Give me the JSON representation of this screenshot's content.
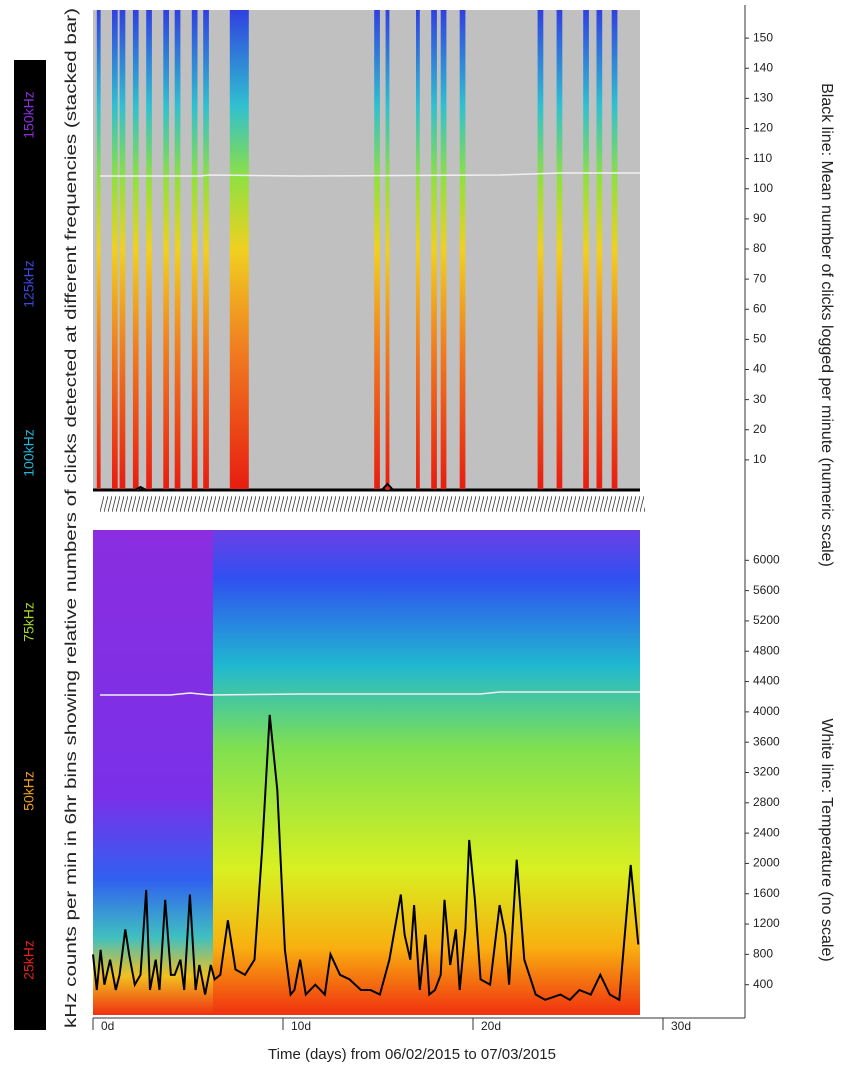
{
  "frequency_legend": {
    "title": "kHz counts per min in 6hr bins showing relative numbers of clicks detected at different frequencies (stacked bar)",
    "items": [
      {
        "label": "25kHz",
        "color": "#e8201c"
      },
      {
        "label": "50kHz",
        "color": "#f0a020"
      },
      {
        "label": "75kHz",
        "color": "#a8d820"
      },
      {
        "label": "100kHz",
        "color": "#20b8d8"
      },
      {
        "label": "125kHz",
        "color": "#3a4ae0"
      },
      {
        "label": "150kHz",
        "color": "#8a30e0"
      }
    ]
  },
  "chart_data": [
    {
      "type": "bar",
      "ylabel": "Black line: Mean number of clicks logged per minute (numeric scale)",
      "xlim": [
        0,
        34
      ],
      "ylim": [
        0,
        160
      ],
      "yticks": [
        10,
        20,
        30,
        40,
        50,
        60,
        70,
        80,
        90,
        100,
        110,
        120,
        130,
        140,
        150
      ],
      "bars": {
        "x_start": [
          0.2,
          1.0,
          1.4,
          2.1,
          2.8,
          3.7,
          4.3,
          5.2,
          5.8,
          7.2,
          14.8,
          15.4,
          17.0,
          17.8,
          18.3,
          19.3,
          23.4,
          24.4,
          25.8,
          26.5,
          27.3
        ],
        "x_end": [
          0.4,
          1.3,
          1.7,
          2.4,
          3.1,
          4.0,
          4.6,
          5.5,
          6.1,
          8.2,
          15.1,
          15.6,
          17.2,
          18.1,
          18.6,
          19.6,
          23.7,
          24.7,
          26.1,
          26.8,
          27.6
        ]
      },
      "line": {
        "color": "#000000",
        "x": [
          0,
          2.2,
          2.5,
          2.8,
          15.2,
          15.5,
          15.8,
          28.7
        ],
        "values": [
          0,
          0,
          1,
          0,
          0,
          2,
          0,
          0
        ]
      }
    },
    {
      "type": "line",
      "ylabel": "White line: Temperature (no scale)",
      "xlabel": "Time (days) from 06/02/2015 to 07/03/2015",
      "xlim": [
        0,
        34
      ],
      "xticks": [
        {
          "value": 0,
          "label": "0d"
        },
        {
          "value": 10,
          "label": "10d"
        },
        {
          "value": 20,
          "label": "20d"
        },
        {
          "value": 30,
          "label": "30d"
        }
      ],
      "ylim": [
        0,
        6400
      ],
      "yticks": [
        400,
        800,
        1200,
        1600,
        2000,
        2400,
        2800,
        3200,
        3600,
        4000,
        4400,
        4800,
        5200,
        5600,
        6000
      ],
      "line": {
        "color": "#000000",
        "x": [
          0,
          0.2,
          0.4,
          0.6,
          0.9,
          1.2,
          1.4,
          1.7,
          1.9,
          2.2,
          2.5,
          2.8,
          3.0,
          3.3,
          3.5,
          3.8,
          4.1,
          4.3,
          4.6,
          4.8,
          5.1,
          5.4,
          5.6,
          5.9,
          6.2,
          6.4,
          6.7,
          7.1,
          7.5,
          8.0,
          8.5,
          8.9,
          9.3,
          9.7,
          10.1,
          10.4,
          10.6,
          10.9,
          11.2,
          11.7,
          12.2,
          12.5,
          13.0,
          13.5,
          14.1,
          14.6,
          15.1,
          15.6,
          16.2,
          16.4,
          16.7,
          16.9,
          17.2,
          17.5,
          17.7,
          18.0,
          18.3,
          18.5,
          18.8,
          19.1,
          19.3,
          19.6,
          19.8,
          20.1,
          20.4,
          20.9,
          21.4,
          21.7,
          21.9,
          22.3,
          22.7,
          23.3,
          23.8,
          24.6,
          25.1,
          25.6,
          26.2,
          26.7,
          27.2,
          27.7,
          28.3,
          28.7
        ],
        "values": [
          800,
          330,
          860,
          400,
          730,
          330,
          530,
          1130,
          800,
          400,
          530,
          1650,
          330,
          730,
          330,
          1520,
          530,
          530,
          730,
          330,
          1590,
          330,
          660,
          270,
          660,
          470,
          530,
          1250,
          600,
          530,
          730,
          2180,
          3960,
          2970,
          860,
          270,
          330,
          730,
          270,
          400,
          270,
          800,
          530,
          470,
          330,
          330,
          270,
          730,
          1590,
          1060,
          730,
          1450,
          330,
          1060,
          270,
          330,
          530,
          1520,
          660,
          1130,
          330,
          1130,
          2310,
          1520,
          470,
          400,
          1450,
          1060,
          400,
          2050,
          730,
          270,
          200,
          270,
          200,
          330,
          270,
          530,
          270,
          200,
          1980,
          930
        ]
      }
    }
  ]
}
